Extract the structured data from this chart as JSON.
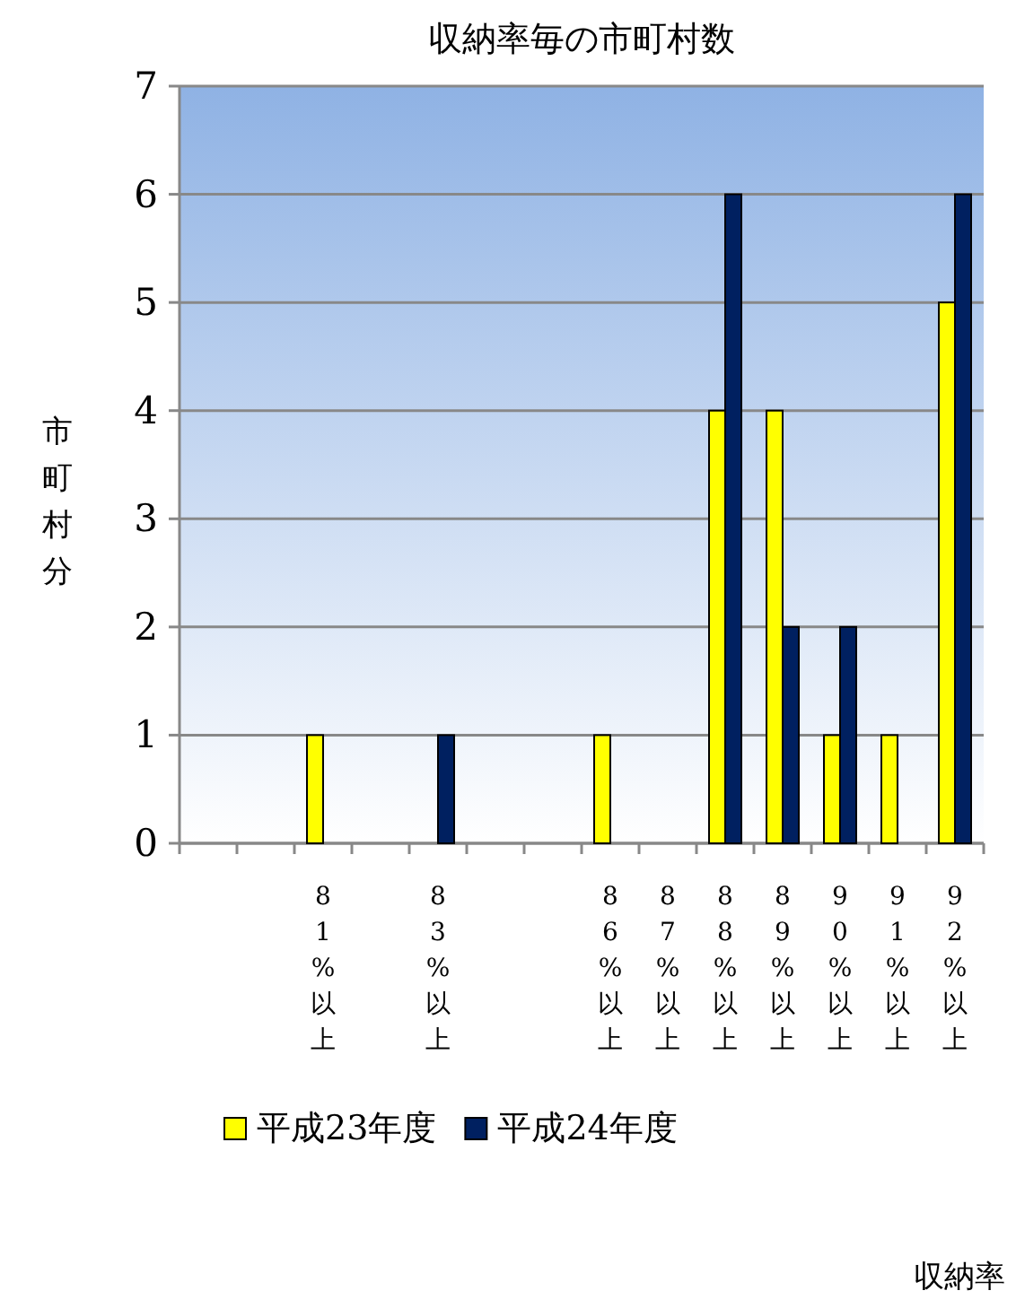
{
  "chart_data": {
    "type": "bar",
    "title": "収納率毎の市町村数",
    "annotations": [
      "収納率"
    ],
    "ylabel": "市町村分",
    "categories": [
      null,
      null,
      "81%以上",
      null,
      "83%以上",
      null,
      null,
      "86%以上",
      "87%以上",
      "88%以上",
      "89%以上",
      "90%以上",
      "91%以上",
      "92%以上"
    ],
    "series": [
      {
        "name": "平成23年度",
        "color": "#ffff00",
        "values": [
          0,
          0,
          1,
          0,
          0,
          0,
          0,
          1,
          0,
          4,
          4,
          1,
          1,
          5
        ]
      },
      {
        "name": "平成24年度",
        "color": "#002060",
        "values": [
          0,
          0,
          0,
          0,
          1,
          0,
          0,
          0,
          0,
          6,
          2,
          2,
          0,
          6
        ]
      }
    ],
    "ylim": [
      0,
      7
    ],
    "yticks": [
      0,
      1,
      2,
      3,
      4,
      5,
      6,
      7
    ],
    "grid": "y",
    "legend": "bottom"
  }
}
